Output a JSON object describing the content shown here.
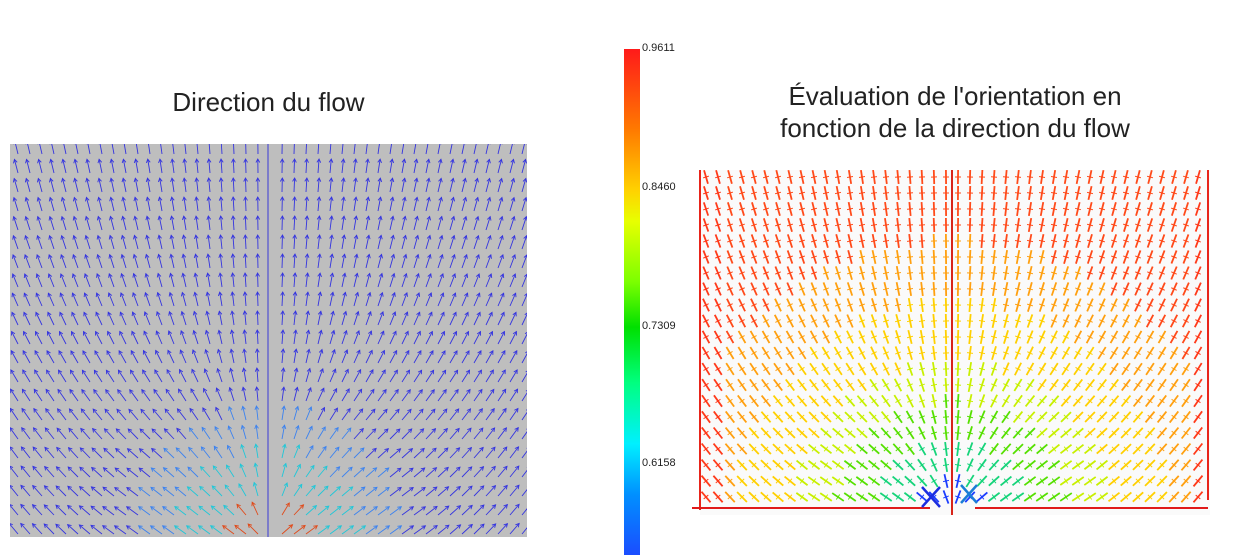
{
  "left": {
    "title": "Direction du flow"
  },
  "right": {
    "title_line1": "Évaluation de l'orientation en",
    "title_line2": "fonction de la direction du flow"
  },
  "colorbar": {
    "ticks": [
      "0.9611",
      "0.8460",
      "0.7309",
      "0.6158"
    ],
    "colors": [
      "#ff1a1a",
      "#ff7a00",
      "#ffd200",
      "#e8ff00",
      "#7cff00",
      "#00e000",
      "#00ff80",
      "#00f0ff",
      "#0090ff",
      "#1b4dff"
    ]
  }
}
